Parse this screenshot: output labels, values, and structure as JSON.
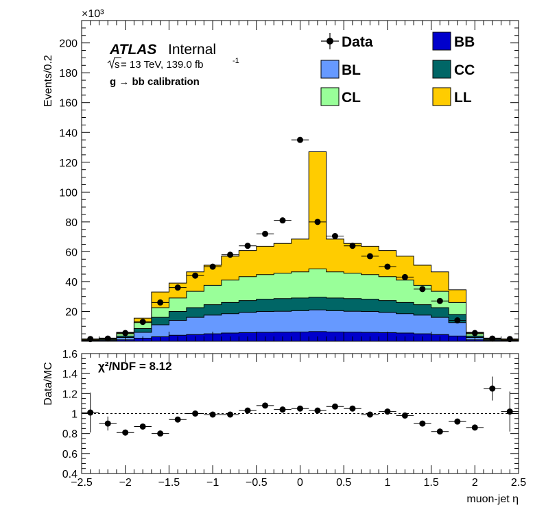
{
  "chart_data": [
    {
      "type": "bar",
      "stacked": true,
      "xlabel": "muon-jet η",
      "ylabel": "Events/0.2",
      "y_multiplier": "×10³",
      "xlim": [
        -2.5,
        2.5
      ],
      "ylim": [
        0,
        215
      ],
      "y_ticks": [
        20,
        40,
        60,
        80,
        100,
        120,
        140,
        160,
        180,
        200
      ],
      "x_ticks": [
        -2.5,
        -2,
        -1.5,
        -1,
        -0.5,
        0,
        0.5,
        1,
        1.5,
        2,
        2.5
      ],
      "legend_placement": "top-right",
      "bin_edges": [
        -2.5,
        -2.3,
        -2.1,
        -1.9,
        -1.7,
        -1.5,
        -1.3,
        -1.1,
        -0.9,
        -0.7,
        -0.5,
        -0.3,
        -0.1,
        0.1,
        0.3,
        0.5,
        0.7,
        0.9,
        1.1,
        1.3,
        1.5,
        1.7,
        1.9,
        2.1,
        2.3,
        2.5
      ],
      "series": [
        {
          "name": "BB",
          "color": "#0000cc",
          "values": [
            0.2,
            0.3,
            1,
            2,
            3,
            4,
            4.5,
            5,
            5.5,
            5.8,
            6,
            6.1,
            6.2,
            6.5,
            6.2,
            6.1,
            6,
            5.8,
            5.5,
            5,
            4.5,
            3.5,
            1,
            0.3,
            0.2
          ]
        },
        {
          "name": "BL",
          "color": "#6699ff",
          "values": [
            0.3,
            0.5,
            1.5,
            4,
            8,
            10,
            11.5,
            12.5,
            13,
            13.5,
            14,
            14,
            14.3,
            14.5,
            14.3,
            14,
            14,
            13.5,
            13,
            12.5,
            11.5,
            9,
            1.5,
            0.5,
            0.3
          ]
        },
        {
          "name": "CC",
          "color": "#006666",
          "values": [
            0.2,
            0.3,
            1,
            2.5,
            5,
            6,
            6.5,
            7,
            7.5,
            8,
            8.2,
            8.5,
            8.5,
            8.5,
            8.5,
            8.5,
            8.2,
            8,
            7.5,
            7,
            6.5,
            5.5,
            1,
            0.3,
            0.2
          ]
        },
        {
          "name": "CL",
          "color": "#99ff99",
          "values": [
            0.3,
            0.5,
            1.5,
            4,
            6.5,
            9,
            11,
            13,
            15,
            16,
            16.5,
            17,
            17.5,
            19,
            17.5,
            17,
            16.5,
            16,
            15,
            13,
            11,
            8,
            1.5,
            0.5,
            0.3
          ]
        },
        {
          "name": "LL",
          "color": "#ffcc00",
          "values": [
            0.5,
            0.5,
            1,
            3,
            10.5,
            10,
            13,
            13.5,
            16,
            17.5,
            19,
            20,
            22,
            78.5,
            22,
            20,
            19,
            17.5,
            16,
            13.5,
            13,
            8.5,
            1,
            0.5,
            0.5
          ]
        }
      ],
      "data_points": {
        "name": "Data",
        "x": [
          -2.4,
          -2.2,
          -2.0,
          -1.8,
          -1.6,
          -1.4,
          -1.2,
          -1.0,
          -0.8,
          -0.6,
          -0.4,
          -0.2,
          0.0,
          0.2,
          0.4,
          0.6,
          0.8,
          1.0,
          1.2,
          1.4,
          1.6,
          1.8,
          2.0,
          2.2,
          2.4
        ],
        "y": [
          1.5,
          1.8,
          5.5,
          13,
          26,
          36,
          44,
          50,
          58,
          64,
          72,
          81,
          135,
          80,
          70.5,
          64,
          57,
          50,
          43,
          35,
          27,
          14,
          5.5,
          1.8,
          1.5
        ]
      },
      "annotations": {
        "experiment": "ATLAS",
        "status": "Internal",
        "energy_prefix": "s",
        "energy": " = 13 TeV, 139.0 fb",
        "energy_exp": "-1",
        "selection": "g  → bb calibration"
      }
    },
    {
      "type": "scatter",
      "xlabel": "muon-jet η",
      "ylabel": "Data/MC",
      "xlim": [
        -2.5,
        2.5
      ],
      "ylim": [
        0.4,
        1.6
      ],
      "y_ticks": [
        0.4,
        0.6,
        0.8,
        1,
        1.2,
        1.4,
        1.6
      ],
      "x_ticks": [
        -2.5,
        -2,
        -1.5,
        -1,
        -0.5,
        0,
        0.5,
        1,
        1.5,
        2,
        2.5
      ],
      "reference_line": 1,
      "chi2_label": "χ²/NDF = 8.12",
      "x": [
        -2.4,
        -2.2,
        -2.0,
        -1.8,
        -1.6,
        -1.4,
        -1.2,
        -1.0,
        -0.8,
        -0.6,
        -0.4,
        -0.2,
        0.0,
        0.2,
        0.4,
        0.6,
        0.8,
        1.0,
        1.2,
        1.4,
        1.6,
        1.8,
        2.0,
        2.2,
        2.4
      ],
      "y": [
        1.01,
        0.9,
        0.81,
        0.87,
        0.8,
        0.94,
        1.0,
        0.99,
        0.99,
        1.03,
        1.08,
        1.04,
        1.05,
        1.03,
        1.07,
        1.05,
        0.99,
        1.02,
        0.98,
        0.9,
        0.82,
        0.92,
        0.86,
        1.25,
        1.02
      ],
      "y_err": [
        0.2,
        0.07,
        0.03,
        0.02,
        0.02,
        0.01,
        0.01,
        0.01,
        0.01,
        0.01,
        0.01,
        0.01,
        0.01,
        0.01,
        0.01,
        0.01,
        0.01,
        0.01,
        0.01,
        0.01,
        0.02,
        0.02,
        0.03,
        0.12,
        0.2
      ]
    }
  ]
}
